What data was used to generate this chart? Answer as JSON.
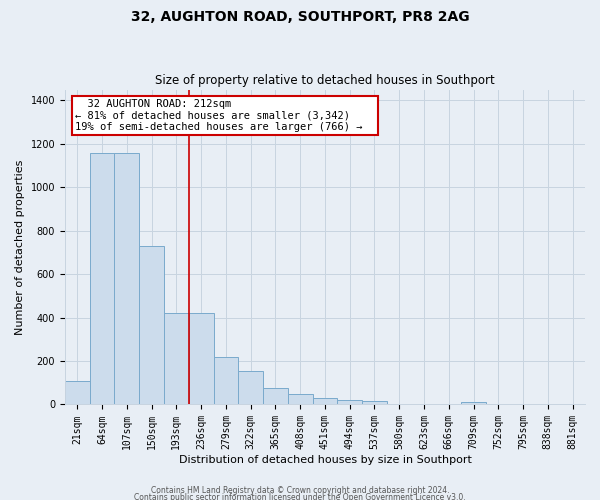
{
  "title": "32, AUGHTON ROAD, SOUTHPORT, PR8 2AG",
  "subtitle": "Size of property relative to detached houses in Southport",
  "xlabel": "Distribution of detached houses by size in Southport",
  "ylabel": "Number of detached properties",
  "bar_labels": [
    "21sqm",
    "64sqm",
    "107sqm",
    "150sqm",
    "193sqm",
    "236sqm",
    "279sqm",
    "322sqm",
    "365sqm",
    "408sqm",
    "451sqm",
    "494sqm",
    "537sqm",
    "580sqm",
    "623sqm",
    "666sqm",
    "709sqm",
    "752sqm",
    "795sqm",
    "838sqm",
    "881sqm"
  ],
  "bar_values": [
    107,
    1160,
    1160,
    730,
    420,
    420,
    220,
    155,
    75,
    50,
    30,
    20,
    15,
    0,
    0,
    0,
    10,
    0,
    0,
    0,
    0
  ],
  "bar_color": "#ccdcec",
  "bar_edge_color": "#7aaacc",
  "vline_color": "#cc0000",
  "vline_x_idx": 4.5,
  "annotation_title": "32 AUGHTON ROAD: 212sqm",
  "annotation_line1": "← 81% of detached houses are smaller (3,342)",
  "annotation_line2": "19% of semi-detached houses are larger (766) →",
  "annotation_box_color": "#ffffff",
  "annotation_box_edge": "#cc0000",
  "ylim": [
    0,
    1450
  ],
  "yticks": [
    0,
    200,
    400,
    600,
    800,
    1000,
    1200,
    1400
  ],
  "footer1": "Contains HM Land Registry data © Crown copyright and database right 2024.",
  "footer2": "Contains public sector information licensed under the Open Government Licence v3.0.",
  "background_color": "#e8eef5",
  "plot_bg_color": "#e8eef5",
  "grid_color": "#c8d4e0",
  "title_fontsize": 10,
  "subtitle_fontsize": 8.5,
  "ylabel_fontsize": 8,
  "xlabel_fontsize": 8,
  "tick_fontsize": 7,
  "footer_fontsize": 5.5
}
